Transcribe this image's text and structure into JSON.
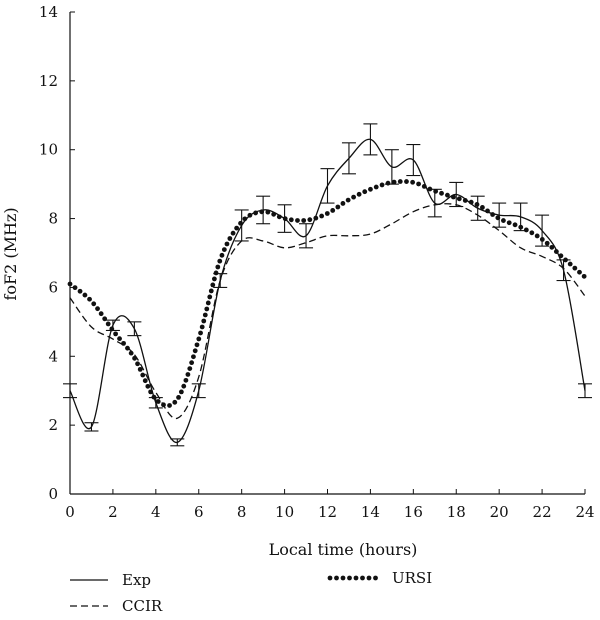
{
  "chart_data": {
    "type": "line",
    "title": "",
    "xlabel": "Local time (hours)",
    "ylabel": "foF2 (MHz)",
    "xlim": [
      0,
      24
    ],
    "ylim": [
      0,
      14
    ],
    "x_ticks": [
      "0",
      "2",
      "4",
      "6",
      "8",
      "10",
      "12",
      "14",
      "16",
      "18",
      "20",
      "22",
      "24"
    ],
    "y_ticks": [
      "0",
      "2",
      "4",
      "6",
      "8",
      "10",
      "12",
      "14"
    ],
    "grid": false,
    "legend_position": "bottom",
    "series": [
      {
        "name": "Exp",
        "style": "solid",
        "color": "#111111",
        "x": [
          0,
          1,
          2,
          3,
          4,
          5,
          6,
          7,
          8,
          9,
          10,
          11,
          12,
          13,
          14,
          15,
          16,
          17,
          18,
          19,
          20,
          21,
          22,
          23,
          24
        ],
        "y": [
          3.0,
          1.95,
          4.9,
          4.8,
          2.65,
          1.5,
          3.0,
          6.2,
          7.8,
          8.25,
          8.0,
          7.5,
          8.95,
          9.75,
          10.3,
          9.5,
          9.7,
          8.45,
          8.7,
          8.3,
          8.1,
          8.05,
          7.65,
          6.5,
          3.0
        ],
        "error": [
          0.2,
          0.12,
          0.15,
          0.2,
          0.15,
          0.1,
          0.2,
          0.2,
          0.45,
          0.4,
          0.4,
          0.35,
          0.5,
          0.45,
          0.45,
          0.5,
          0.45,
          0.4,
          0.35,
          0.35,
          0.35,
          0.4,
          0.45,
          0.3,
          0.2
        ]
      },
      {
        "name": "CCIR",
        "style": "dashed",
        "color": "#111111",
        "x": [
          0,
          1,
          2,
          3,
          4,
          5,
          6,
          7,
          8,
          9,
          10,
          11,
          12,
          13,
          14,
          15,
          16,
          17,
          18,
          19,
          20,
          21,
          22,
          23,
          24
        ],
        "y": [
          5.7,
          4.85,
          4.5,
          4.05,
          2.95,
          2.2,
          3.4,
          6.2,
          7.35,
          7.35,
          7.15,
          7.3,
          7.5,
          7.5,
          7.55,
          7.85,
          8.2,
          8.4,
          8.4,
          8.1,
          7.65,
          7.15,
          6.9,
          6.55,
          5.75
        ]
      },
      {
        "name": "URSI",
        "style": "dotted",
        "color": "#111111",
        "x": [
          0,
          1,
          2,
          3,
          4,
          5,
          6,
          7,
          8,
          9,
          10,
          11,
          12,
          13,
          14,
          15,
          16,
          17,
          18,
          19,
          20,
          21,
          22,
          23,
          24
        ],
        "y": [
          6.1,
          5.6,
          4.75,
          3.95,
          2.75,
          2.75,
          4.5,
          6.8,
          7.9,
          8.2,
          8.0,
          7.95,
          8.15,
          8.55,
          8.85,
          9.05,
          9.05,
          8.8,
          8.6,
          8.4,
          8.0,
          7.75,
          7.4,
          6.85,
          6.3
        ]
      }
    ],
    "legend": [
      {
        "label": "Exp",
        "style": "solid"
      },
      {
        "label": "CCIR",
        "style": "dashed"
      },
      {
        "label": "URSI",
        "style": "dotted"
      }
    ]
  }
}
